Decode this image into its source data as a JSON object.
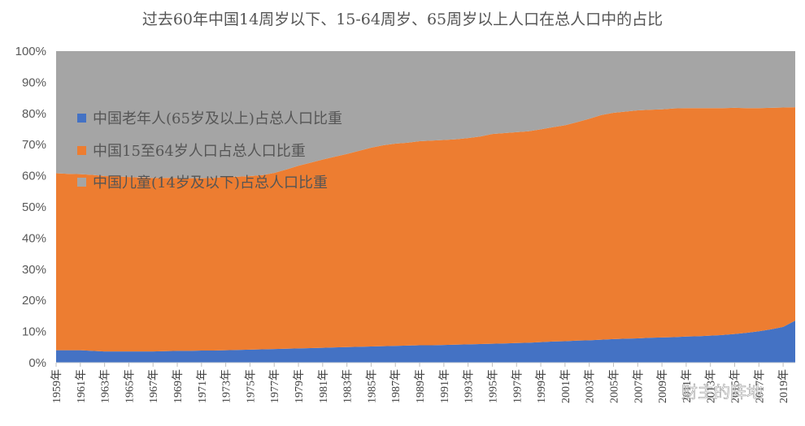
{
  "chart_data": {
    "type": "area",
    "stacked": true,
    "percent": true,
    "title": "过去60年中国14周岁以下、15-64周岁、65周岁以上人口在总人口中的占比",
    "ylim": [
      0,
      100
    ],
    "y_ticks": [
      "0%",
      "10%",
      "20%",
      "30%",
      "40%",
      "50%",
      "60%",
      "70%",
      "80%",
      "90%",
      "100%"
    ],
    "x_tick_labels": [
      "1959年",
      "1961年",
      "1963年",
      "1965年",
      "1967年",
      "1969年",
      "1971年",
      "1973年",
      "1975年",
      "1977年",
      "1979年",
      "1981年",
      "1983年",
      "1985年",
      "1987年",
      "1989年",
      "1991年",
      "1993年",
      "1995年",
      "1997年",
      "1999年",
      "2001年",
      "2003年",
      "2005年",
      "2007年",
      "2009年",
      "2011年",
      "2013年",
      "2015年",
      "2017年",
      "2019年"
    ],
    "x": [
      1959,
      1960,
      1961,
      1962,
      1963,
      1964,
      1965,
      1966,
      1967,
      1968,
      1969,
      1970,
      1971,
      1972,
      1973,
      1974,
      1975,
      1976,
      1977,
      1978,
      1979,
      1980,
      1981,
      1982,
      1983,
      1984,
      1985,
      1986,
      1987,
      1988,
      1989,
      1990,
      1991,
      1992,
      1993,
      1994,
      1995,
      1996,
      1997,
      1998,
      1999,
      2000,
      2001,
      2002,
      2003,
      2004,
      2005,
      2006,
      2007,
      2008,
      2009,
      2010,
      2011,
      2012,
      2013,
      2014,
      2015,
      2016,
      2017,
      2018,
      2019,
      2020
    ],
    "legend_position": "left-upper",
    "series": [
      {
        "name": "中国老年人(65岁及以上)占总人口比重",
        "color": "#4472C4",
        "values": [
          4.0,
          4.0,
          4.0,
          3.8,
          3.6,
          3.6,
          3.6,
          3.6,
          3.6,
          3.7,
          3.8,
          3.8,
          3.9,
          3.9,
          4.0,
          4.1,
          4.2,
          4.3,
          4.4,
          4.5,
          4.6,
          4.7,
          4.8,
          4.9,
          5.0,
          5.1,
          5.2,
          5.3,
          5.4,
          5.5,
          5.6,
          5.6,
          5.7,
          5.8,
          5.9,
          6.0,
          6.1,
          6.2,
          6.3,
          6.4,
          6.6,
          6.8,
          6.9,
          7.1,
          7.2,
          7.4,
          7.6,
          7.7,
          7.8,
          8.0,
          8.1,
          8.2,
          8.4,
          8.5,
          8.7,
          8.9,
          9.2,
          9.6,
          10.1,
          10.7,
          11.5,
          13.5
        ]
      },
      {
        "name": "中国15至64岁人口占总人口比重",
        "color": "#ED7D31",
        "values": [
          56.8,
          56.6,
          56.5,
          56.5,
          56.3,
          56.2,
          56.0,
          55.8,
          55.7,
          55.6,
          55.5,
          55.4,
          55.3,
          55.4,
          55.6,
          55.6,
          55.7,
          55.9,
          56.5,
          57.5,
          58.6,
          59.5,
          60.4,
          61.2,
          62.0,
          62.9,
          63.8,
          64.5,
          64.9,
          65.1,
          65.5,
          65.7,
          65.8,
          65.9,
          66.2,
          66.6,
          67.3,
          67.5,
          67.7,
          67.9,
          68.3,
          68.8,
          69.3,
          70.1,
          71.1,
          72.1,
          72.6,
          72.9,
          73.2,
          73.2,
          73.2,
          73.4,
          73.3,
          73.2,
          73.0,
          72.8,
          72.6,
          72.1,
          71.6,
          71.1,
          70.4,
          68.5
        ]
      },
      {
        "name": "中国儿童(14岁及以下)占总人口比重",
        "color": "#A5A5A5",
        "values": [
          39.2,
          39.4,
          39.5,
          39.7,
          40.1,
          40.2,
          40.4,
          40.6,
          40.7,
          40.7,
          40.7,
          40.8,
          40.8,
          40.7,
          40.4,
          40.3,
          40.1,
          39.8,
          39.1,
          38.0,
          36.8,
          35.8,
          34.8,
          33.9,
          33.0,
          32.0,
          31.0,
          30.2,
          29.7,
          29.4,
          28.9,
          28.7,
          28.5,
          28.3,
          27.9,
          27.4,
          26.6,
          26.3,
          26.0,
          25.7,
          25.1,
          24.4,
          23.8,
          22.8,
          21.7,
          20.5,
          19.8,
          19.4,
          19.0,
          18.8,
          18.7,
          18.4,
          18.3,
          18.3,
          18.3,
          18.3,
          18.2,
          18.3,
          18.3,
          18.2,
          18.1,
          18.0
        ]
      }
    ]
  },
  "watermark": {
    "text": "财主的阵地"
  }
}
